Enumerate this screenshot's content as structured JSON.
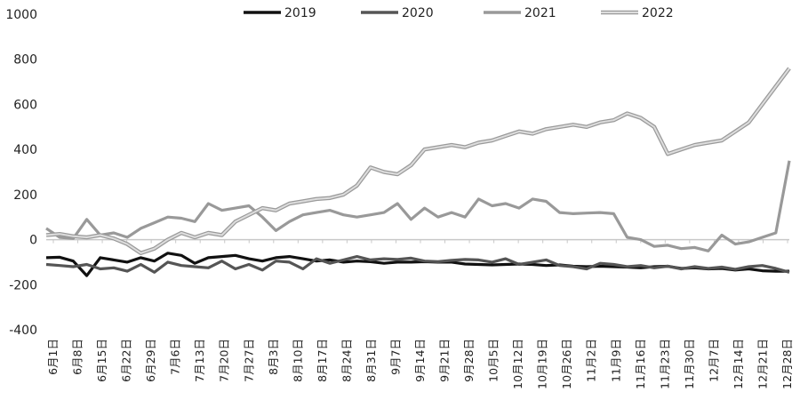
{
  "chart_data": {
    "type": "line",
    "title": "",
    "xlabel": "",
    "ylabel": "",
    "ylim": [
      -400,
      1000
    ],
    "y_ticks": [
      -400,
      -200,
      0,
      200,
      400,
      600,
      800,
      1000
    ],
    "legend_position": "top-center",
    "grid": false,
    "x_tick_labels": [
      "6月1日",
      "6月8日",
      "6月15日",
      "6月22日",
      "6月29日",
      "7月6日",
      "7月13日",
      "7月20日",
      "7月27日",
      "8月3日",
      "8月10日",
      "8月17日",
      "8月24日",
      "8月31日",
      "9月7日",
      "9月14日",
      "9月21日",
      "9月28日",
      "10月5日",
      "10月12日",
      "10月19日",
      "10月26日",
      "11月2日",
      "11月9日",
      "11月16日",
      "11月23日",
      "11月30日",
      "12月7日",
      "12月14日",
      "12月21日",
      "12月28日"
    ],
    "series": [
      {
        "name": "2019",
        "color": "#111111",
        "values": [
          -80,
          -78,
          -95,
          -160,
          -80,
          -90,
          -100,
          -80,
          -95,
          -60,
          -70,
          -105,
          -80,
          -75,
          -70,
          -85,
          -95,
          -80,
          -75,
          -85,
          -95,
          -90,
          -100,
          -95,
          -98,
          -105,
          -100,
          -100,
          -98,
          -100,
          -100,
          -108,
          -110,
          -112,
          -110,
          -108,
          -110,
          -115,
          -112,
          -118,
          -120,
          -118,
          -120,
          -122,
          -125,
          -120,
          -118,
          -128,
          -125,
          -130,
          -128,
          -135,
          -130,
          -138,
          -140,
          -140
        ]
      },
      {
        "name": "2020",
        "color": "#555555",
        "values": [
          -110,
          -115,
          -120,
          -110,
          -130,
          -125,
          -140,
          -110,
          -145,
          -100,
          -115,
          -120,
          -125,
          -95,
          -130,
          -110,
          -135,
          -95,
          -100,
          -130,
          -85,
          -105,
          -90,
          -75,
          -90,
          -85,
          -88,
          -82,
          -95,
          -98,
          -92,
          -88,
          -90,
          -100,
          -85,
          -110,
          -100,
          -90,
          -115,
          -120,
          -130,
          -105,
          -110,
          -120,
          -115,
          -125,
          -118,
          -130,
          -120,
          -128,
          -122,
          -132,
          -120,
          -115,
          -128,
          -145
        ]
      },
      {
        "name": "2021",
        "color": "#999999",
        "values": [
          50,
          10,
          5,
          90,
          20,
          30,
          10,
          50,
          75,
          100,
          95,
          80,
          160,
          130,
          140,
          150,
          100,
          40,
          80,
          110,
          120,
          130,
          110,
          100,
          110,
          120,
          160,
          90,
          140,
          100,
          120,
          100,
          180,
          150,
          160,
          140,
          180,
          170,
          120,
          115,
          118,
          120,
          115,
          10,
          0,
          -30,
          -25,
          -40,
          -35,
          -50,
          20,
          -20,
          -10,
          10,
          30,
          350
        ]
      },
      {
        "name": "2022",
        "color": "#dddddd",
        "values": [
          20,
          25,
          15,
          10,
          20,
          5,
          -20,
          -60,
          -40,
          0,
          30,
          10,
          30,
          20,
          80,
          110,
          140,
          130,
          160,
          170,
          180,
          185,
          200,
          240,
          320,
          300,
          290,
          330,
          400,
          410,
          420,
          410,
          430,
          440,
          460,
          480,
          470,
          490,
          500,
          510,
          500,
          520,
          530,
          560,
          540,
          500,
          380,
          400,
          420,
          430,
          440,
          480,
          520,
          600,
          680,
          760
        ]
      }
    ]
  }
}
